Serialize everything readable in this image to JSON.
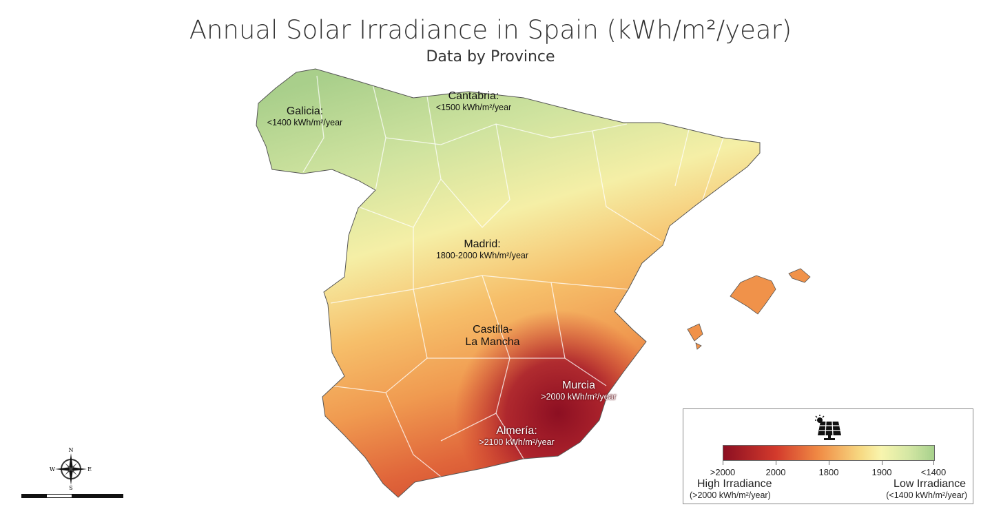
{
  "title": "Annual Solar Irradiance in Spain (kWh/m²/year)",
  "subtitle": "Data by Province",
  "labels": {
    "galicia": {
      "name": "Galicia:",
      "value": "<1400 kWh/m²/year"
    },
    "cantabria": {
      "name": "Cantabria:",
      "value": "<1500 kWh/m²/year"
    },
    "madrid": {
      "name": "Madrid:",
      "value": "1800-2000 kWh/m²/year"
    },
    "castilla": {
      "name": "Castilla-",
      "name2": "La Mancha"
    },
    "murcia": {
      "name": "Murcia",
      "value": ">2000 kWh/m²/year"
    },
    "almeria": {
      "name": "Almería:",
      "value": ">2100 kWh/m²/year"
    }
  },
  "compass": {
    "n": "N",
    "s": "S",
    "e": "E",
    "w": "W"
  },
  "legend": {
    "icon": "solar-panel-icon",
    "ticks": [
      ">2000",
      "2000",
      "1800",
      "1900",
      "<1400"
    ],
    "high_label": "High Irradiance",
    "high_sub": "(>2000 kWh/m²/year)",
    "low_label": "Low Irradiance",
    "low_sub": "(<1400 kWh/m²/year)",
    "colors": [
      "#8c0f22",
      "#d33a2c",
      "#f08a44",
      "#f8f5ae",
      "#a7d18c"
    ]
  }
}
